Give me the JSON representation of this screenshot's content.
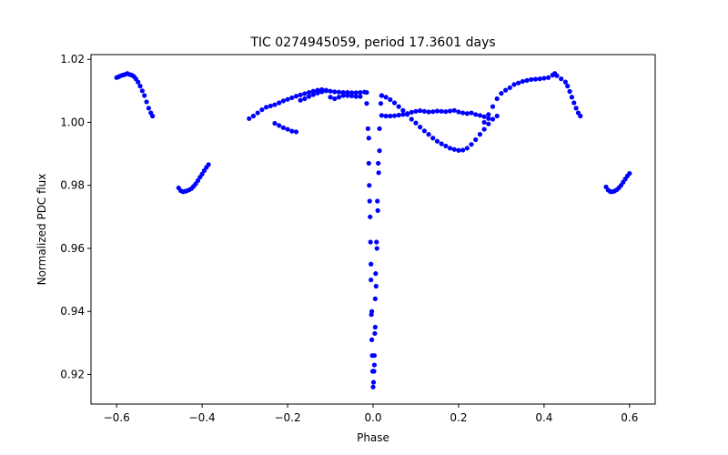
{
  "chart_data": {
    "type": "scatter",
    "title": "TIC 0274945059, period 17.3601 days",
    "xlabel": "Phase",
    "ylabel": "Normalized PDC flux",
    "xlim": [
      -0.66,
      0.66
    ],
    "ylim": [
      0.9106,
      1.0215
    ],
    "xticks": [
      -0.6,
      -0.4,
      -0.2,
      0.0,
      0.2,
      0.4,
      0.6
    ],
    "xtick_labels": [
      "−0.6",
      "−0.4",
      "−0.2",
      "0.0",
      "0.2",
      "0.4",
      "0.6"
    ],
    "yticks": [
      0.92,
      0.94,
      0.96,
      0.98,
      1.0,
      1.02
    ],
    "ytick_labels": [
      "0.92",
      "0.94",
      "0.96",
      "0.98",
      "1.00",
      "1.02"
    ],
    "grid": false,
    "marker_color": "#0000ff",
    "series": [
      {
        "name": "left-edge-arc",
        "x": [
          -0.6,
          -0.595,
          -0.59,
          -0.585,
          -0.58,
          -0.575,
          -0.57,
          -0.565,
          -0.56,
          -0.555,
          -0.55,
          -0.545,
          -0.54,
          -0.535,
          -0.53,
          -0.525,
          -0.52,
          -0.516
        ],
        "y": [
          1.0142,
          1.0145,
          1.0148,
          1.015,
          1.0152,
          1.0155,
          1.0152,
          1.015,
          1.0146,
          1.0138,
          1.0128,
          1.0115,
          1.01,
          1.0085,
          1.0065,
          1.0045,
          1.003,
          1.002
        ]
      },
      {
        "name": "left-dip-arc",
        "x": [
          -0.455,
          -0.45,
          -0.445,
          -0.44,
          -0.435,
          -0.43,
          -0.425,
          -0.42,
          -0.415,
          -0.41,
          -0.405,
          -0.4,
          -0.395,
          -0.39,
          -0.385
        ],
        "y": [
          0.9792,
          0.9783,
          0.978,
          0.9781,
          0.9783,
          0.9786,
          0.979,
          0.9797,
          0.9805,
          0.9815,
          0.9826,
          0.9836,
          0.9847,
          0.9857,
          0.9866
        ]
      },
      {
        "name": "left-rising-band",
        "x": [
          -0.29,
          -0.28,
          -0.27,
          -0.26,
          -0.25,
          -0.24,
          -0.23,
          -0.22,
          -0.21,
          -0.2,
          -0.19,
          -0.18,
          -0.17,
          -0.16,
          -0.15,
          -0.14,
          -0.13,
          -0.12,
          -0.11,
          -0.1,
          -0.09,
          -0.08,
          -0.07,
          -0.06,
          -0.05,
          -0.04,
          -0.03,
          -0.02,
          -0.015
        ],
        "y": [
          1.0012,
          1.002,
          1.003,
          1.004,
          1.0048,
          1.0052,
          1.0056,
          1.0062,
          1.0068,
          1.0073,
          1.0078,
          1.0083,
          1.0087,
          1.0091,
          1.0095,
          1.0099,
          1.0102,
          1.0104,
          1.0102,
          1.0099,
          1.0097,
          1.0096,
          1.0095,
          1.0095,
          1.0094,
          1.0094,
          1.0095,
          1.0096,
          1.0095
        ]
      },
      {
        "name": "left-falling-band",
        "x": [
          -0.23,
          -0.22,
          -0.21,
          -0.2,
          -0.19,
          -0.18,
          -0.17,
          -0.16,
          -0.15,
          -0.14,
          -0.13,
          -0.12,
          -0.11,
          -0.1,
          -0.09,
          -0.08,
          -0.07,
          -0.06,
          -0.05,
          -0.04,
          -0.03
        ],
        "y": [
          0.9997,
          0.999,
          0.9983,
          0.9978,
          0.9972,
          0.997,
          1.007,
          1.0075,
          1.0082,
          1.0088,
          1.0093,
          1.0097,
          1.01,
          1.008,
          1.0075,
          1.008,
          1.0085,
          1.0085,
          1.0084,
          1.0082,
          1.0082
        ]
      },
      {
        "name": "primary-eclipse",
        "x": [
          -0.015,
          -0.012,
          -0.01,
          -0.008,
          -0.006,
          -0.005,
          -0.004,
          -0.003,
          -0.002,
          -0.001,
          0.0,
          0.001,
          0.002,
          0.003,
          0.004,
          0.005,
          0.006,
          0.008,
          0.01,
          0.012,
          0.015,
          0.018,
          0.02,
          -0.01,
          -0.009,
          -0.007,
          -0.005,
          -0.003,
          0.003,
          0.005,
          0.007,
          0.009,
          0.011,
          0.013,
          0.015
        ],
        "y": [
          1.006,
          0.998,
          0.987,
          0.975,
          0.962,
          0.95,
          0.939,
          0.931,
          0.926,
          0.921,
          0.916,
          0.9175,
          0.921,
          0.926,
          0.933,
          0.944,
          0.952,
          0.962,
          0.975,
          0.987,
          0.998,
          1.006,
          1.0085,
          0.995,
          0.98,
          0.97,
          0.955,
          0.94,
          0.923,
          0.935,
          0.948,
          0.96,
          0.972,
          0.984,
          0.991
        ]
      },
      {
        "name": "right-descending-band",
        "x": [
          0.02,
          0.03,
          0.04,
          0.05,
          0.06,
          0.07,
          0.08,
          0.09,
          0.1,
          0.11,
          0.12,
          0.13,
          0.14,
          0.15,
          0.16,
          0.17,
          0.18,
          0.19,
          0.2,
          0.21,
          0.22,
          0.23,
          0.24,
          0.25,
          0.26,
          0.27,
          0.28,
          0.29
        ],
        "y": [
          1.0085,
          1.008,
          1.0072,
          1.0062,
          1.005,
          1.0038,
          1.0025,
          1.001,
          0.9998,
          0.9985,
          0.9973,
          0.9962,
          0.995,
          0.994,
          0.9932,
          0.9925,
          0.9918,
          0.9914,
          0.9911,
          0.9912,
          0.9918,
          0.993,
          0.9945,
          0.9962,
          0.9978,
          0.9995,
          1.001,
          1.002
        ]
      },
      {
        "name": "right-flat-band",
        "x": [
          0.02,
          0.03,
          0.04,
          0.05,
          0.06,
          0.07,
          0.08,
          0.09,
          0.1,
          0.11,
          0.12,
          0.13,
          0.14,
          0.15,
          0.16,
          0.17,
          0.18,
          0.19,
          0.2,
          0.21,
          0.22,
          0.23,
          0.24,
          0.25,
          0.26,
          0.27
        ],
        "y": [
          1.0022,
          1.002,
          1.002,
          1.0021,
          1.0023,
          1.0025,
          1.0028,
          1.0032,
          1.0035,
          1.0037,
          1.0035,
          1.0033,
          1.0034,
          1.0036,
          1.0035,
          1.0034,
          1.0036,
          1.0038,
          1.0033,
          1.003,
          1.0028,
          1.003,
          1.0025,
          1.0022,
          1.0018,
          1.0012
        ]
      },
      {
        "name": "right-hump",
        "x": [
          0.26,
          0.27,
          0.28,
          0.29,
          0.3,
          0.31,
          0.32,
          0.33,
          0.34,
          0.35,
          0.36,
          0.37,
          0.38,
          0.39,
          0.4,
          0.41,
          0.42,
          0.425,
          0.43,
          0.44,
          0.45,
          0.455,
          0.46,
          0.465,
          0.47,
          0.475,
          0.48,
          0.485
        ],
        "y": [
          1.0,
          1.0025,
          1.005,
          1.0075,
          1.0092,
          1.0102,
          1.011,
          1.012,
          1.0125,
          1.013,
          1.0133,
          1.0136,
          1.0137,
          1.0138,
          1.014,
          1.0142,
          1.015,
          1.0155,
          1.0148,
          1.0138,
          1.0128,
          1.0115,
          1.0098,
          1.008,
          1.0062,
          1.0045,
          1.003,
          1.002
        ]
      },
      {
        "name": "right-dip-arc",
        "x": [
          0.545,
          0.55,
          0.555,
          0.56,
          0.565,
          0.57,
          0.575,
          0.58,
          0.585,
          0.59,
          0.595,
          0.6
        ],
        "y": [
          0.9795,
          0.9785,
          0.978,
          0.978,
          0.9782,
          0.9786,
          0.9792,
          0.98,
          0.981,
          0.982,
          0.983,
          0.9838
        ]
      }
    ]
  }
}
